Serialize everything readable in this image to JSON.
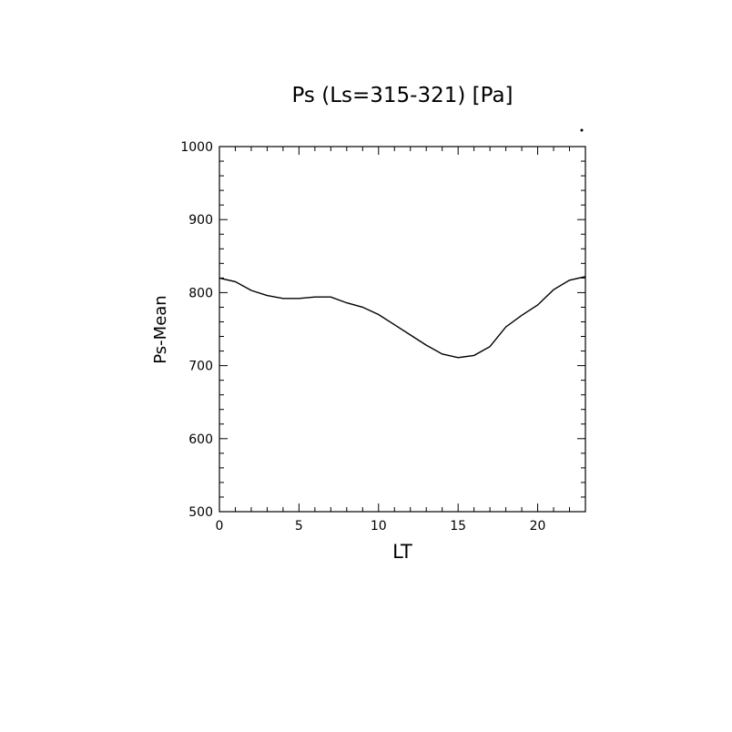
{
  "chart_data": {
    "type": "line",
    "title": "Ps (Ls=315-321) [Pa]",
    "xlabel": "LT",
    "ylabel": "Ps-Mean",
    "xlim": [
      0,
      23
    ],
    "ylim": [
      500,
      1000
    ],
    "x_ticks": [
      0,
      5,
      10,
      15,
      20
    ],
    "x_tick_labels": [
      "0",
      "5",
      "10",
      "15",
      "20"
    ],
    "y_ticks": [
      500,
      600,
      700,
      800,
      900,
      1000
    ],
    "y_tick_labels": [
      "500",
      "600",
      "700",
      "800",
      "900",
      "1000"
    ],
    "grid": false,
    "line_color": "#000000",
    "series": [
      {
        "x": [
          0,
          1,
          2,
          3,
          4,
          5,
          6,
          7,
          8,
          9,
          10,
          11,
          12,
          13,
          14,
          15,
          16,
          17,
          18,
          19,
          20,
          21,
          22,
          23
        ],
        "values": [
          820,
          815,
          803,
          796,
          792,
          792,
          794,
          794,
          786,
          780,
          770,
          756,
          742,
          728,
          716,
          711,
          714,
          726,
          753,
          769,
          783,
          804,
          817,
          822
        ]
      }
    ]
  }
}
